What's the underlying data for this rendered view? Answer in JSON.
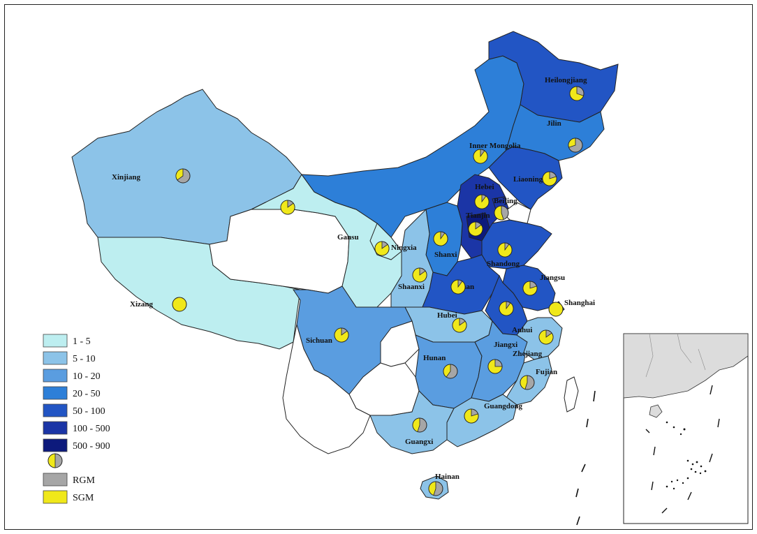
{
  "legend": {
    "classes": [
      {
        "label": "1 - 5",
        "color": "#bdeef0"
      },
      {
        "label": "5 - 10",
        "color": "#8cc3e8"
      },
      {
        "label": "10 - 20",
        "color": "#5a9de0"
      },
      {
        "label": "20 - 50",
        "color": "#2d7fd8"
      },
      {
        "label": "50 - 100",
        "color": "#2255c4"
      },
      {
        "label": "100 - 500",
        "color": "#1b35a6"
      },
      {
        "label": "500 - 900",
        "color": "#0d1a7c"
      }
    ],
    "pie_items": [
      {
        "label": "RGM",
        "color": "#a6a6a6"
      },
      {
        "label": "SGM",
        "color": "#f0e81a"
      }
    ]
  },
  "provinces": {
    "heilongjiang": {
      "label": "Heilongjiang",
      "sgm_share": 0.7
    },
    "jilin": {
      "label": "Jilin",
      "sgm_share": 0.3
    },
    "liaoning": {
      "label": "Liaoning",
      "sgm_share": 0.8
    },
    "inner_mongolia": {
      "label": "Inner Mongolia",
      "sgm_share": 0.9
    },
    "xinjiang": {
      "label": "Xinjiang",
      "sgm_share": 0.35
    },
    "gansu": {
      "label": "Gansu",
      "sgm_share": 0.85
    },
    "ningxia": {
      "label": "Ningxia",
      "sgm_share": 0.85
    },
    "hebei": {
      "label": "Hebei",
      "sgm_share": 0.9
    },
    "beijing": {
      "label": "Beijing",
      "sgm_share": 0.55
    },
    "tianjin": {
      "label": "Tianjin",
      "sgm_share": 0.85
    },
    "shanxi": {
      "label": "Shanxi",
      "sgm_share": 0.9
    },
    "shandong": {
      "label": "Shandong",
      "sgm_share": 0.9
    },
    "henan": {
      "label": "Henan",
      "sgm_share": 0.9
    },
    "jiangsu": {
      "label": "Jiangsu",
      "sgm_share": 0.8
    },
    "shanghai": {
      "label": "Shanghai",
      "sgm_share": 1.0
    },
    "anhui": {
      "label": "Anhui",
      "sgm_share": 0.9
    },
    "shaanxi": {
      "label": "Shaanxi",
      "sgm_share": 0.85
    },
    "hubei": {
      "label": "Hubei",
      "sgm_share": 0.85
    },
    "sichuan": {
      "label": "Sichuan",
      "sgm_share": 0.85
    },
    "xizang": {
      "label": "Xizang",
      "sgm_share": 1.0
    },
    "hunan": {
      "label": "Hunan",
      "sgm_share": 0.4
    },
    "jiangxi": {
      "label": "Jiangxi",
      "sgm_share": 0.75
    },
    "zhejiang": {
      "label": "Zhejiang",
      "sgm_share": 0.85
    },
    "fujian": {
      "label": "Fujian",
      "sgm_share": 0.45
    },
    "guangdong": {
      "label": "Guangdong",
      "sgm_share": 0.8
    },
    "guangxi": {
      "label": "Guangxi",
      "sgm_share": 0.45
    },
    "hainan": {
      "label": "Hainan",
      "sgm_share": 0.45
    }
  }
}
